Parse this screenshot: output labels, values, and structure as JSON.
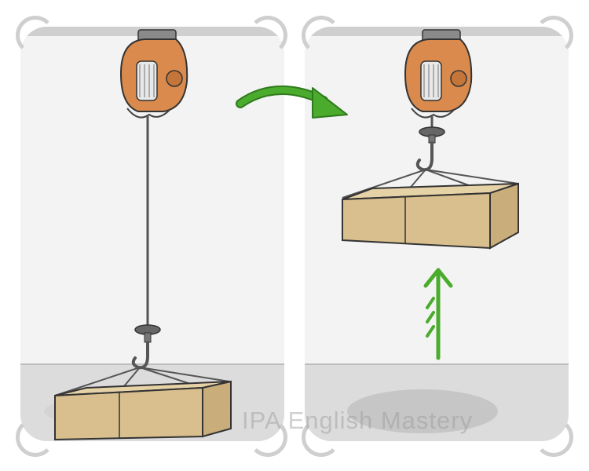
{
  "panels": [
    {
      "id": "before",
      "state": "load-on-ground"
    },
    {
      "id": "after",
      "state": "load-lifted"
    }
  ],
  "watermark": {
    "text": "IPA English Mastery"
  },
  "colors": {
    "hoist_orange": "#d98a4c",
    "box_tan": "#d9bf8e",
    "arrow_green": "#4aab2c",
    "ceiling_gray": "#cfcfcf",
    "floor_gray": "#dcdcdc"
  },
  "icons": [
    "electric-hoist-icon",
    "hook-icon",
    "cardboard-box-icon",
    "curved-arrow-icon",
    "up-arrow-icon"
  ]
}
